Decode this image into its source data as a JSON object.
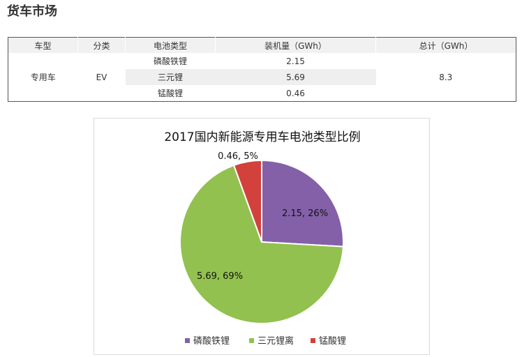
{
  "page": {
    "title": "货车市场"
  },
  "table": {
    "headers": [
      "车型",
      "分类",
      "电池类型",
      "装机量（GWh）",
      "总计（GWh）"
    ],
    "vehicle_type": "专用车",
    "category": "EV",
    "rows": [
      {
        "battery": "磷酸铁锂",
        "capacity": "2.15"
      },
      {
        "battery": "三元锂",
        "capacity": "5.69"
      },
      {
        "battery": "锰酸锂",
        "capacity": "0.46"
      }
    ],
    "total": "8.3"
  },
  "chart_data": {
    "type": "pie",
    "title": "2017国内新能源专用车电池类型比例",
    "legend_position": "bottom",
    "slices": [
      {
        "name": "磷酸铁锂",
        "value": 2.15,
        "percent": 26,
        "label": "2.15, 26%",
        "color": "#8460a9"
      },
      {
        "name": "三元锂离",
        "value": 5.69,
        "percent": 69,
        "label": "5.69, 69%",
        "color": "#92c14f"
      },
      {
        "name": "锰酸锂",
        "value": 0.46,
        "percent": 5,
        "label": "0.46, 5%",
        "color": "#d2413b"
      }
    ]
  }
}
